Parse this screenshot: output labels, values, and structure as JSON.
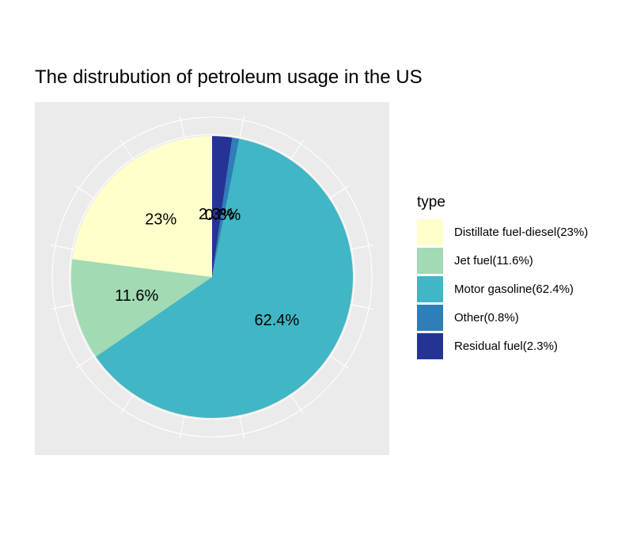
{
  "chart_data": {
    "type": "pie",
    "title": "The distrubution of petroleum usage in the US",
    "legend_title": "type",
    "legend_position": "right",
    "grid": true,
    "slices": [
      {
        "label": "Residual fuel",
        "legend_label": "Residual fuel(2.3%)",
        "value": 2.3,
        "display": "2.3%",
        "color": "#253494"
      },
      {
        "label": "Other",
        "legend_label": "Other(0.8%)",
        "value": 0.8,
        "display": "0.8%",
        "color": "#2c7fb8"
      },
      {
        "label": "Motor gasoline",
        "legend_label": "Motor gasoline(62.4%)",
        "value": 62.4,
        "display": "62.4%",
        "color": "#41b6c4"
      },
      {
        "label": "Jet fuel",
        "legend_label": "Jet fuel(11.6%)",
        "value": 11.6,
        "display": "11.6%",
        "color": "#a1dab4"
      },
      {
        "label": "Distillate fuel-diesel",
        "legend_label": "Distillate fuel-diesel(23%)",
        "value": 23,
        "display": "23%",
        "color": "#ffffcc"
      }
    ],
    "legend_order": [
      4,
      3,
      2,
      1,
      0
    ]
  }
}
